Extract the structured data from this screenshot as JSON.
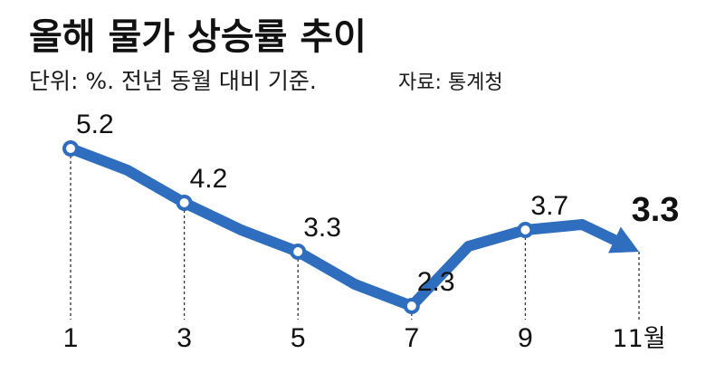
{
  "chart_data": {
    "type": "line",
    "title": "올해 물가 상승률 추이",
    "subtitle": "단위: %. 전년 동월 대비 기준.",
    "source": "자료: 통계청",
    "categories": [
      "1",
      "3",
      "5",
      "7",
      "9",
      "11월"
    ],
    "series": [
      {
        "x": [
          1,
          2,
          3,
          4,
          5,
          6,
          7,
          8,
          9,
          10,
          11
        ],
        "values": [
          5.2,
          4.8,
          4.2,
          3.7,
          3.3,
          2.7,
          2.3,
          3.4,
          3.7,
          3.8,
          3.3
        ]
      }
    ],
    "marked_points": [
      {
        "x": 1,
        "value": 5.2,
        "label": "5.2"
      },
      {
        "x": 3,
        "value": 4.2,
        "label": "4.2"
      },
      {
        "x": 5,
        "value": 3.3,
        "label": "3.3"
      },
      {
        "x": 7,
        "value": 2.3,
        "label": "2.3"
      },
      {
        "x": 9,
        "value": 3.7,
        "label": "3.7"
      },
      {
        "x": 11,
        "value": 3.3,
        "label": "3.3"
      }
    ],
    "xlim": [
      1,
      11
    ],
    "ylim": [
      2.3,
      5.2
    ],
    "grid": false,
    "line_color": "#2f6ebe",
    "marker_fill": "#ffffff"
  }
}
